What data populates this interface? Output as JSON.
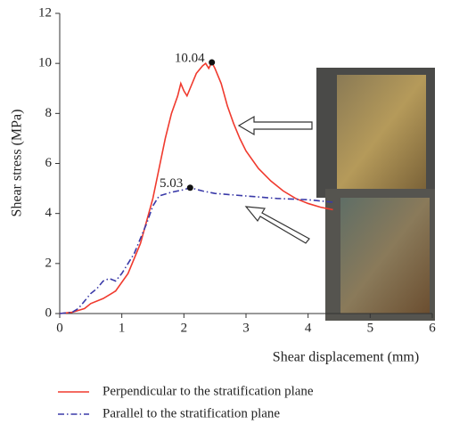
{
  "chart_data": {
    "type": "line",
    "xlabel": "Shear displacement (mm)",
    "ylabel": "Shear stress (MPa)",
    "xlim": [
      0,
      6
    ],
    "xticks": [
      0,
      1,
      2,
      3,
      4,
      5,
      6
    ],
    "ylim": [
      0,
      12
    ],
    "yticks": [
      0,
      2,
      4,
      6,
      8,
      10,
      12
    ],
    "series": [
      {
        "name": "Perpendicular to the stratification plane",
        "color": "#f03a2e",
        "dash": "solid",
        "x": [
          0,
          0.2,
          0.4,
          0.5,
          0.7,
          0.9,
          1.1,
          1.3,
          1.5,
          1.6,
          1.7,
          1.8,
          1.9,
          1.95,
          2.0,
          2.05,
          2.1,
          2.2,
          2.3,
          2.35,
          2.4,
          2.45,
          2.5,
          2.6,
          2.7,
          2.8,
          2.9,
          3.0,
          3.2,
          3.4,
          3.6,
          3.8,
          4.0,
          4.2,
          4.4
        ],
        "values": [
          0,
          0.05,
          0.2,
          0.4,
          0.6,
          0.9,
          1.6,
          2.8,
          4.6,
          5.8,
          7.0,
          8.0,
          8.7,
          9.2,
          8.9,
          8.7,
          9.0,
          9.6,
          9.9,
          10.0,
          9.8,
          10.04,
          9.8,
          9.2,
          8.3,
          7.6,
          7.0,
          6.5,
          5.8,
          5.3,
          4.9,
          4.6,
          4.4,
          4.25,
          4.15
        ]
      },
      {
        "name": "Parallel to the stratification plane",
        "color": "#3a3aa8",
        "dash": "dashdot",
        "x": [
          0,
          0.2,
          0.3,
          0.4,
          0.5,
          0.6,
          0.7,
          0.8,
          0.9,
          1.0,
          1.2,
          1.4,
          1.5,
          1.6,
          1.8,
          2.0,
          2.1,
          2.3,
          2.5,
          3.0,
          3.5,
          4.0,
          4.4
        ],
        "values": [
          0,
          0.05,
          0.2,
          0.5,
          0.8,
          1.0,
          1.3,
          1.4,
          1.3,
          1.6,
          2.4,
          3.6,
          4.3,
          4.7,
          4.85,
          4.95,
          5.03,
          4.9,
          4.8,
          4.7,
          4.6,
          4.55,
          4.45
        ]
      }
    ],
    "annotations": [
      {
        "text": "10.04",
        "x": 2.45,
        "y": 10.04
      },
      {
        "text": "5.03",
        "x": 2.1,
        "y": 5.03
      }
    ]
  }
}
